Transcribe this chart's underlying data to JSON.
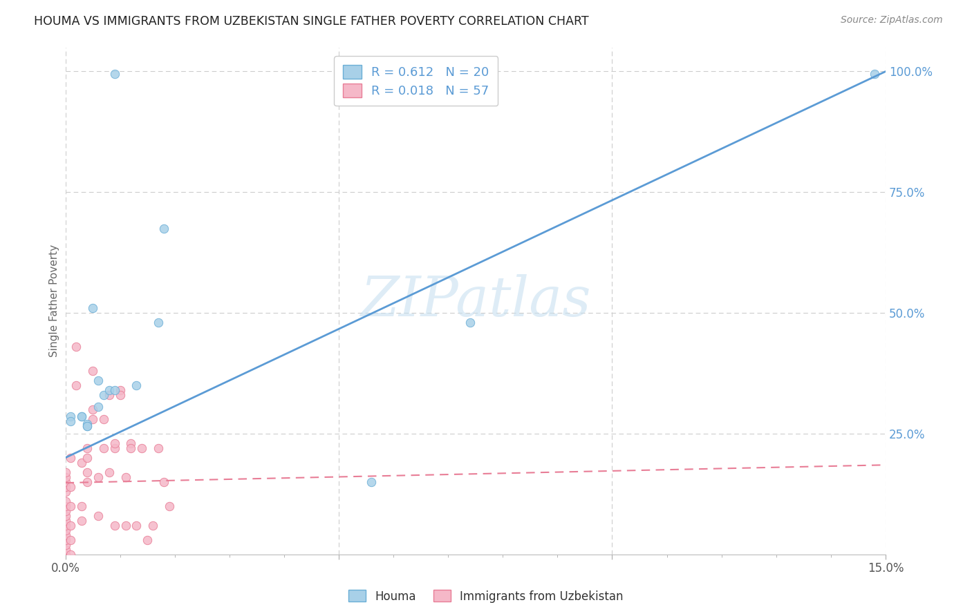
{
  "title": "HOUMA VS IMMIGRANTS FROM UZBEKISTAN SINGLE FATHER POVERTY CORRELATION CHART",
  "source": "Source: ZipAtlas.com",
  "ylabel": "Single Father Poverty",
  "x_min": 0.0,
  "x_max": 0.15,
  "y_min": 0.0,
  "y_max": 1.05,
  "x_tick_labels": [
    "0.0%",
    "",
    "",
    "",
    "",
    "",
    "",
    "",
    "",
    "",
    "",
    "",
    "",
    "",
    "15.0%"
  ],
  "y_tick_labels_right": [
    "100.0%",
    "75.0%",
    "50.0%",
    "25.0%"
  ],
  "y_tick_vals_right": [
    1.0,
    0.75,
    0.5,
    0.25
  ],
  "houma_R": "0.612",
  "houma_N": "20",
  "uzbek_R": "0.018",
  "uzbek_N": "57",
  "houma_color": "#a8d0e8",
  "uzbek_color": "#f5b8c8",
  "houma_edge_color": "#6aaed6",
  "uzbek_edge_color": "#e87d96",
  "houma_line_color": "#5b9bd5",
  "uzbek_line_color": "#e87d96",
  "legend_label_houma": "Houma",
  "legend_label_uzbek": "Immigrants from Uzbekistan",
  "watermark": "ZIPatlas",
  "houma_line_x0": 0.0,
  "houma_line_y0": 0.2,
  "houma_line_x1": 0.15,
  "houma_line_y1": 1.0,
  "uzbek_line_x0": 0.0,
  "uzbek_line_y0": 0.148,
  "uzbek_line_x1": 0.15,
  "uzbek_line_y1": 0.185,
  "houma_scatter_x": [
    0.009,
    0.001,
    0.001,
    0.003,
    0.003,
    0.004,
    0.004,
    0.004,
    0.005,
    0.006,
    0.006,
    0.007,
    0.008,
    0.009,
    0.013,
    0.017,
    0.018,
    0.056,
    0.074,
    0.148
  ],
  "houma_scatter_y": [
    0.995,
    0.285,
    0.275,
    0.285,
    0.285,
    0.27,
    0.265,
    0.265,
    0.51,
    0.305,
    0.36,
    0.33,
    0.34,
    0.34,
    0.35,
    0.48,
    0.675,
    0.15,
    0.48,
    0.995
  ],
  "uzbek_scatter_x": [
    0.0,
    0.0,
    0.0,
    0.0,
    0.0,
    0.0,
    0.0,
    0.0,
    0.0,
    0.0,
    0.0,
    0.0,
    0.0,
    0.0,
    0.0,
    0.0,
    0.0,
    0.001,
    0.001,
    0.001,
    0.001,
    0.001,
    0.001,
    0.002,
    0.002,
    0.003,
    0.003,
    0.003,
    0.004,
    0.004,
    0.004,
    0.004,
    0.005,
    0.005,
    0.005,
    0.006,
    0.006,
    0.007,
    0.007,
    0.008,
    0.008,
    0.009,
    0.009,
    0.009,
    0.01,
    0.01,
    0.011,
    0.011,
    0.012,
    0.012,
    0.013,
    0.014,
    0.015,
    0.016,
    0.017,
    0.018,
    0.019
  ],
  "uzbek_scatter_y": [
    0.0,
    0.01,
    0.02,
    0.03,
    0.04,
    0.05,
    0.06,
    0.07,
    0.08,
    0.09,
    0.1,
    0.11,
    0.13,
    0.14,
    0.15,
    0.16,
    0.17,
    0.0,
    0.03,
    0.06,
    0.1,
    0.14,
    0.2,
    0.43,
    0.35,
    0.07,
    0.1,
    0.19,
    0.15,
    0.17,
    0.2,
    0.22,
    0.28,
    0.3,
    0.38,
    0.08,
    0.16,
    0.22,
    0.28,
    0.17,
    0.33,
    0.06,
    0.22,
    0.23,
    0.34,
    0.33,
    0.06,
    0.16,
    0.23,
    0.22,
    0.06,
    0.22,
    0.03,
    0.06,
    0.22,
    0.15,
    0.1
  ]
}
